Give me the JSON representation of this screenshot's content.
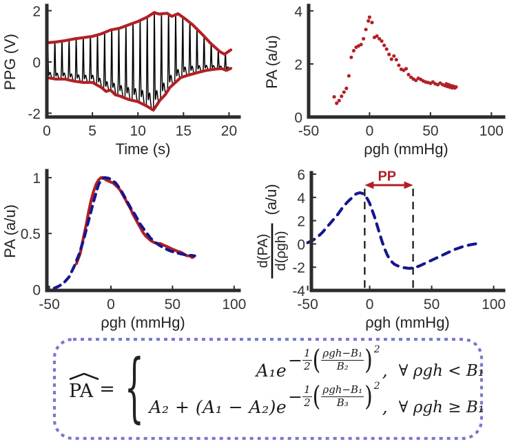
{
  "colors": {
    "red": "#b22025",
    "navy": "#16168e",
    "signal": "#000000",
    "axis": "#2b2b2b",
    "dash_black": "#111111",
    "eq_border": "#7779d0"
  },
  "chart_data": [
    {
      "id": "ppg-vs-time",
      "type": "line",
      "xlabel": "Time (s)",
      "ylabel": "PPG (V)",
      "xlim": [
        0,
        21.1
      ],
      "ylim": [
        -2.15,
        2.15
      ],
      "xticks": [
        0,
        5,
        10,
        15,
        20
      ],
      "yticks": [
        -2,
        0,
        2
      ],
      "grid": false,
      "envelope_upper": [
        [
          0,
          0.75
        ],
        [
          1,
          0.78
        ],
        [
          2,
          0.83
        ],
        [
          3,
          0.9
        ],
        [
          4,
          0.95
        ],
        [
          5,
          1.0
        ],
        [
          6,
          1.1
        ],
        [
          7,
          1.25
        ],
        [
          8,
          1.32
        ],
        [
          9,
          1.45
        ],
        [
          10,
          1.58
        ],
        [
          11,
          1.75
        ],
        [
          11.8,
          1.93
        ],
        [
          12.3,
          1.87
        ],
        [
          13.2,
          1.9
        ],
        [
          13.7,
          1.78
        ],
        [
          14.4,
          1.88
        ],
        [
          15.2,
          1.68
        ],
        [
          16,
          1.45
        ],
        [
          17,
          1.1
        ],
        [
          18,
          0.72
        ],
        [
          19,
          0.4
        ],
        [
          19.5,
          0.3
        ],
        [
          20.2,
          0.47
        ]
      ],
      "envelope_lower": [
        [
          0,
          -0.61
        ],
        [
          1,
          -0.67
        ],
        [
          2,
          -0.67
        ],
        [
          3,
          -0.75
        ],
        [
          4,
          -0.8
        ],
        [
          5,
          -0.8
        ],
        [
          6,
          -1.0
        ],
        [
          6.5,
          -1.15
        ],
        [
          7,
          -1.1
        ],
        [
          7.5,
          -1.28
        ],
        [
          8,
          -1.33
        ],
        [
          9,
          -1.47
        ],
        [
          10,
          -1.55
        ],
        [
          11,
          -1.73
        ],
        [
          11.7,
          -1.88
        ],
        [
          12.4,
          -1.5
        ],
        [
          13,
          -1.28
        ],
        [
          13.5,
          -1.0
        ],
        [
          14.7,
          -0.61
        ],
        [
          15.5,
          -0.52
        ],
        [
          16.5,
          -0.42
        ],
        [
          17.5,
          -0.33
        ],
        [
          18.5,
          -0.28
        ],
        [
          19.2,
          -0.26
        ],
        [
          19.7,
          -0.33
        ],
        [
          20.2,
          -0.25
        ]
      ],
      "series": [
        {
          "name": "ppg-signal",
          "type": "ppg_signal",
          "color": "signal",
          "width": 1.5,
          "carrier": {
            "period_s": 0.78,
            "peak_pos": 0.13,
            "peak_width": 0.055,
            "notch_amp": 0.16,
            "notch_pos": 0.45,
            "notch_width": 0.12
          }
        },
        {
          "name": "envelope-upper",
          "type": "line",
          "color": "red",
          "width": 4.2,
          "points_ref": "envelope_upper"
        },
        {
          "name": "envelope-lower",
          "type": "line",
          "color": "red",
          "width": 4.2,
          "points_ref": "envelope_lower"
        }
      ]
    },
    {
      "id": "pa-vs-pgh-scatter",
      "type": "scatter",
      "xlabel": "ρgh (mmHg)",
      "ylabel": "PA (a/u)",
      "xlim": [
        -50,
        110
      ],
      "ylim": [
        0,
        4.15
      ],
      "xticks": [
        -50,
        0,
        50,
        100
      ],
      "yticks": [
        0,
        2,
        4
      ],
      "grid": false,
      "series": [
        {
          "name": "pa-scatter",
          "type": "scatter",
          "color": "red",
          "r": 2.6,
          "points": [
            [
              -29,
              0.76
            ],
            [
              -27,
              0.52
            ],
            [
              -25,
              0.62
            ],
            [
              -23,
              0.78
            ],
            [
              -21,
              0.94
            ],
            [
              -19,
              1.08
            ],
            [
              -17,
              1.55
            ],
            [
              -15,
              2.25
            ],
            [
              -13,
              2.5
            ],
            [
              -11,
              2.63
            ],
            [
              -9,
              2.68
            ],
            [
              -7,
              2.73
            ],
            [
              -5,
              2.95
            ],
            [
              -3,
              3.3
            ],
            [
              -1,
              3.62
            ],
            [
              0,
              3.76
            ],
            [
              2,
              3.56
            ],
            [
              4,
              3.0
            ],
            [
              6,
              3.05
            ],
            [
              8,
              2.95
            ],
            [
              10,
              2.86
            ],
            [
              12,
              2.7
            ],
            [
              14,
              2.56
            ],
            [
              16,
              2.36
            ],
            [
              18,
              2.18
            ],
            [
              20,
              2.3
            ],
            [
              22,
              2.16
            ],
            [
              24,
              1.95
            ],
            [
              26,
              1.8
            ],
            [
              28,
              1.76
            ],
            [
              30,
              1.82
            ],
            [
              32,
              1.6
            ],
            [
              34,
              1.5
            ],
            [
              36,
              1.43
            ],
            [
              38,
              1.38
            ],
            [
              40,
              1.46
            ],
            [
              42,
              1.42
            ],
            [
              44,
              1.36
            ],
            [
              46,
              1.32
            ],
            [
              48,
              1.3
            ],
            [
              50,
              1.27
            ],
            [
              52,
              1.32
            ],
            [
              54,
              1.25
            ],
            [
              56,
              1.22
            ],
            [
              58,
              1.28
            ],
            [
              60,
              1.22
            ],
            [
              62,
              1.18
            ],
            [
              63,
              1.25
            ],
            [
              64,
              1.15
            ],
            [
              65,
              1.22
            ],
            [
              66,
              1.12
            ],
            [
              67,
              1.18
            ],
            [
              68,
              1.1
            ],
            [
              69,
              1.16
            ],
            [
              70,
              1.1
            ],
            [
              71,
              1.13
            ]
          ]
        }
      ]
    },
    {
      "id": "pa-normalized-fit",
      "type": "line",
      "xlabel": "ρgh (mmHg)",
      "ylabel": "PA (a/u)",
      "xlim": [
        -52,
        104
      ],
      "ylim": [
        -0.01,
        1.05
      ],
      "xticks": [
        -50,
        0,
        50,
        100
      ],
      "yticks": [
        0,
        0.5,
        1
      ],
      "grid": false,
      "series": [
        {
          "name": "pa-measured-curve",
          "type": "line",
          "color": "red",
          "width": 4.2,
          "points": [
            [
              -28,
              0.23
            ],
            [
              -25,
              0.32
            ],
            [
              -22,
              0.48
            ],
            [
              -20,
              0.58
            ],
            [
              -18,
              0.7
            ],
            [
              -16,
              0.8
            ],
            [
              -14,
              0.88
            ],
            [
              -12,
              0.94
            ],
            [
              -10,
              0.98
            ],
            [
              -8,
              1.0
            ],
            [
              -6,
              1.0
            ],
            [
              -4,
              0.98
            ],
            [
              -2,
              0.97
            ],
            [
              0,
              0.96
            ],
            [
              2,
              0.95
            ],
            [
              4,
              0.93
            ],
            [
              6,
              0.91
            ],
            [
              8,
              0.88
            ],
            [
              10,
              0.84
            ],
            [
              12,
              0.8
            ],
            [
              14,
              0.76
            ],
            [
              16,
              0.72
            ],
            [
              18,
              0.67
            ],
            [
              20,
              0.63
            ],
            [
              22,
              0.59
            ],
            [
              24,
              0.55
            ],
            [
              26,
              0.51
            ],
            [
              28,
              0.48
            ],
            [
              30,
              0.46
            ],
            [
              32,
              0.44
            ],
            [
              34,
              0.425
            ],
            [
              36,
              0.415
            ],
            [
              38,
              0.41
            ],
            [
              40,
              0.41
            ],
            [
              42,
              0.4
            ],
            [
              44,
              0.39
            ],
            [
              46,
              0.38
            ],
            [
              48,
              0.37
            ],
            [
              50,
              0.36
            ],
            [
              52,
              0.35
            ],
            [
              54,
              0.34
            ],
            [
              56,
              0.335
            ],
            [
              58,
              0.325
            ],
            [
              60,
              0.31
            ],
            [
              62,
              0.3
            ],
            [
              64,
              0.3
            ],
            [
              66,
              0.285
            ],
            [
              67,
              0.29
            ]
          ]
        },
        {
          "name": "pa-model-fit-curve",
          "type": "line",
          "color": "navy",
          "width": 4.2,
          "dash": "10 8",
          "points": [
            [
              -46,
              0.01
            ],
            [
              -42,
              0.03
            ],
            [
              -38,
              0.06
            ],
            [
              -34,
              0.11
            ],
            [
              -30,
              0.2
            ],
            [
              -26,
              0.31
            ],
            [
              -22,
              0.45
            ],
            [
              -18,
              0.62
            ],
            [
              -14,
              0.79
            ],
            [
              -10,
              0.94
            ],
            [
              -7,
              0.99
            ],
            [
              -5,
              1.0
            ],
            [
              -2,
              0.995
            ],
            [
              0,
              0.985
            ],
            [
              4,
              0.95
            ],
            [
              8,
              0.89
            ],
            [
              12,
              0.81
            ],
            [
              16,
              0.73
            ],
            [
              20,
              0.66
            ],
            [
              24,
              0.58
            ],
            [
              28,
              0.52
            ],
            [
              32,
              0.46
            ],
            [
              36,
              0.42
            ],
            [
              40,
              0.39
            ],
            [
              44,
              0.365
            ],
            [
              48,
              0.345
            ],
            [
              52,
              0.33
            ],
            [
              56,
              0.32
            ],
            [
              60,
              0.31
            ],
            [
              64,
              0.305
            ],
            [
              68,
              0.3
            ]
          ]
        }
      ]
    },
    {
      "id": "pa-derivative",
      "type": "line",
      "xlabel": "ρgh (mmHg)",
      "ylabel": {
        "frac_num": "d(PA)",
        "frac_den": "d(ρgh)",
        "suffix": "(a/u)"
      },
      "xlim": [
        -47,
        108
      ],
      "ylim": [
        -4,
        6
      ],
      "xticks": [
        -50,
        0,
        50,
        100
      ],
      "yticks": [
        -4,
        -2,
        0,
        2,
        4,
        6
      ],
      "grid": false,
      "series": [
        {
          "name": "derivative-curve",
          "type": "line",
          "color": "navy",
          "width": 4.2,
          "dash": "11 9",
          "points": [
            [
              -50,
              0.1
            ],
            [
              -46,
              0.3
            ],
            [
              -42,
              0.6
            ],
            [
              -38,
              1.0
            ],
            [
              -34,
              1.5
            ],
            [
              -30,
              2.0
            ],
            [
              -26,
              2.5
            ],
            [
              -22,
              3.1
            ],
            [
              -18,
              3.6
            ],
            [
              -14,
              4.0
            ],
            [
              -11,
              4.3
            ],
            [
              -8,
              4.4
            ],
            [
              -6,
              4.35
            ],
            [
              -4,
              4.2
            ],
            [
              -2,
              3.9
            ],
            [
              0,
              3.5
            ],
            [
              2,
              2.9
            ],
            [
              4,
              2.3
            ],
            [
              6,
              1.6
            ],
            [
              8,
              0.9
            ],
            [
              10,
              0.2
            ],
            [
              12,
              -0.4
            ],
            [
              14,
              -0.9
            ],
            [
              16,
              -1.3
            ],
            [
              18,
              -1.55
            ],
            [
              20,
              -1.75
            ],
            [
              24,
              -1.95
            ],
            [
              28,
              -2.05
            ],
            [
              32,
              -2.1
            ],
            [
              36,
              -2.05
            ],
            [
              40,
              -1.9
            ],
            [
              44,
              -1.7
            ],
            [
              48,
              -1.5
            ],
            [
              52,
              -1.3
            ],
            [
              56,
              -1.1
            ],
            [
              60,
              -0.9
            ],
            [
              64,
              -0.7
            ],
            [
              68,
              -0.5
            ],
            [
              72,
              -0.35
            ],
            [
              76,
              -0.2
            ],
            [
              80,
              -0.1
            ],
            [
              84,
              -0.02
            ],
            [
              88,
              0.05
            ]
          ]
        }
      ],
      "annotations": {
        "vlines": {
          "x": [
            -4,
            35
          ],
          "y_top": 4.75,
          "dash": "11 8",
          "width": 2.2
        },
        "arrow": {
          "x1": -4,
          "x2": 35,
          "y": 5.05,
          "width": 3
        },
        "label": {
          "text": "PP",
          "x": 14,
          "y": 5.45
        }
      }
    }
  ],
  "equation": {
    "lhs": "PA",
    "eq": "=",
    "brace": "{",
    "rows": [
      {
        "base": "A₁e",
        "exp_sign": "−",
        "half_num": "1",
        "half_den": "2",
        "paren_open": "(",
        "num": "ρgh−B₁",
        "den": "B₂",
        "paren_close": ")",
        "power": "2",
        "comma": ",",
        "cond": "∀ ρgh < B₁"
      },
      {
        "base": "A₂ + (A₁ − A₂)e",
        "exp_sign": "−",
        "half_num": "1",
        "half_den": "2",
        "paren_open": "(",
        "num": "ρgh−B₁",
        "den": "B₃",
        "paren_close": ")",
        "power": "2",
        "comma": ",",
        "cond": "∀ ρgh ≥ B₁"
      }
    ]
  }
}
